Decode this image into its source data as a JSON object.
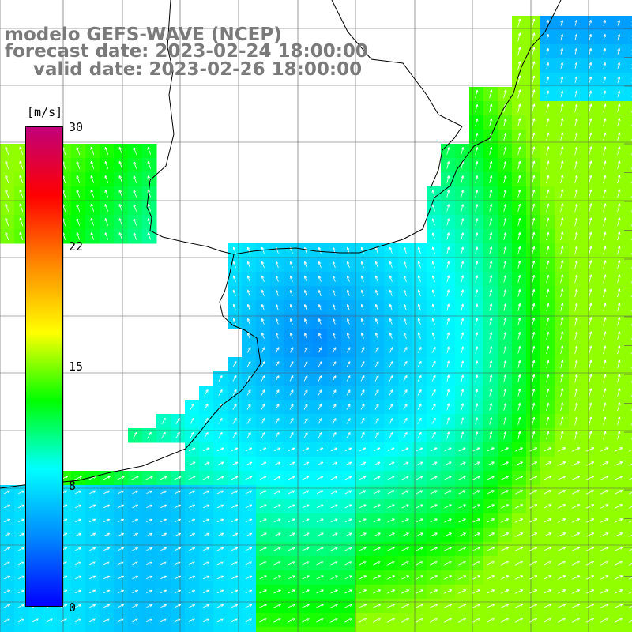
{
  "header": {
    "model_line": "modelo GEFS-WAVE (NCEP)",
    "forecast_line": "forecast date: 2023-02-24 18:00:00",
    "valid_line": "valid date: 2023-02-26 18:00:00"
  },
  "colorbar": {
    "unit": "[m/s]",
    "ticks": [
      "30",
      "22",
      "15",
      "8",
      "0"
    ],
    "tick_values": [
      30,
      22,
      15,
      8,
      0
    ],
    "range": [
      0,
      30
    ],
    "colors": [
      "#0000ff",
      "#0088ff",
      "#00ffff",
      "#00ff00",
      "#ffff00",
      "#ff8800",
      "#ff0000",
      "#c0007a"
    ]
  },
  "map": {
    "variable": "wind speed and direction",
    "background": "#ffffff",
    "grid": true,
    "coastline_color": "#000000",
    "arrow_color": "#ffffff"
  }
}
